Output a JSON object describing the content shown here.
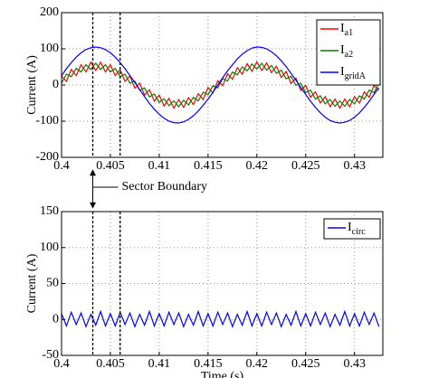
{
  "chart_data": [
    {
      "type": "line",
      "y_label": "Current (A)",
      "x": [
        0.4,
        0.4005,
        0.401,
        0.4015,
        0.402,
        0.4025,
        0.403,
        0.4035,
        0.404,
        0.4045,
        0.405,
        0.4055,
        0.406,
        0.4065,
        0.407,
        0.4075,
        0.408,
        0.4085,
        0.409,
        0.4095,
        0.41,
        0.4105,
        0.411,
        0.4115,
        0.412,
        0.4125,
        0.413,
        0.4135,
        0.414,
        0.4145,
        0.415,
        0.4155,
        0.416,
        0.4165,
        0.417,
        0.4175,
        0.418,
        0.4185,
        0.419,
        0.4195,
        0.42,
        0.4205,
        0.421,
        0.4215,
        0.422,
        0.4225,
        0.423,
        0.4235,
        0.424,
        0.4245,
        0.425,
        0.4255,
        0.426,
        0.4265,
        0.427,
        0.4275,
        0.428,
        0.4285,
        0.429,
        0.4295,
        0.43,
        0.4305,
        0.431,
        0.4315,
        0.432,
        0.4325
      ],
      "series": [
        {
          "name": "Ia1",
          "color": "#ff0000",
          "values": [
            25,
            10,
            43,
            26,
            56,
            36,
            63,
            40,
            63,
            36,
            56,
            26,
            43,
            10,
            25,
            -9,
            5,
            -28,
            -13,
            -45,
            -28,
            -58,
            -37,
            -64,
            -40,
            -62,
            -35,
            -54,
            -24,
            -40,
            -7,
            -22,
            12,
            -2,
            31,
            16,
            48,
            30,
            59,
            38,
            64,
            40,
            61,
            34,
            52,
            21,
            37,
            4,
            19,
            -15,
            -1,
            -34,
            -19,
            -50,
            -32,
            -60,
            -39,
            -64,
            -39,
            -60,
            -32,
            -50,
            -19,
            -34,
            -1,
            -15
          ]
        },
        {
          "name": "Ia2",
          "color": "#008000",
          "values": [
            5,
            30,
            23,
            46,
            36,
            56,
            43,
            60,
            43,
            56,
            36,
            46,
            23,
            30,
            5,
            11,
            -15,
            -8,
            -33,
            -25,
            -48,
            -38,
            -57,
            -44,
            -60,
            -42,
            -55,
            -34,
            -44,
            -20,
            -27,
            -2,
            -8,
            18,
            11,
            36,
            28,
            50,
            39,
            58,
            44,
            60,
            41,
            54,
            32,
            41,
            17,
            24,
            -1,
            5,
            -21,
            -14,
            -39,
            -30,
            -52,
            -40,
            -59,
            -44,
            -59,
            -40,
            -52,
            -30,
            -39,
            -14,
            -21,
            5
          ]
        },
        {
          "name": "IgridA",
          "color": "#0000ff",
          "values": [
            26,
            45,
            62,
            77,
            89,
            98,
            103,
            105,
            103,
            98,
            89,
            77,
            62,
            45,
            26,
            7,
            -13,
            -32,
            -51,
            -67,
            -81,
            -92,
            -100,
            -104,
            -105,
            -102,
            -95,
            -85,
            -72,
            -56,
            -39,
            -20,
            0,
            20,
            39,
            56,
            72,
            85,
            95,
            102,
            105,
            104,
            100,
            92,
            81,
            67,
            51,
            32,
            13,
            -7,
            -26,
            -45,
            -62,
            -77,
            -89,
            -98,
            -103,
            -105,
            -103,
            -98,
            -89,
            -77,
            -62,
            -45,
            -26,
            -7
          ]
        }
      ],
      "xlim": [
        0.4,
        0.4329
      ],
      "xticks": [
        0.4,
        0.405,
        0.41,
        0.415,
        0.42,
        0.425,
        0.43
      ],
      "ylim": [
        -200,
        200
      ],
      "yticks": [
        200,
        100,
        0,
        -100,
        -200
      ],
      "grid": true,
      "legend": "upper right",
      "sector_boundaries": [
        0.4032,
        0.406
      ],
      "annotation": "Sector Boundary"
    },
    {
      "type": "line",
      "y_label": "Current (A)",
      "x_label": "Time (s)",
      "x": [
        0.4,
        0.4005,
        0.401,
        0.4015,
        0.402,
        0.4025,
        0.403,
        0.4035,
        0.404,
        0.4045,
        0.405,
        0.4055,
        0.406,
        0.4065,
        0.407,
        0.4075,
        0.408,
        0.4085,
        0.409,
        0.4095,
        0.41,
        0.4105,
        0.411,
        0.4115,
        0.412,
        0.4125,
        0.413,
        0.4135,
        0.414,
        0.4145,
        0.415,
        0.4155,
        0.416,
        0.4165,
        0.417,
        0.4175,
        0.418,
        0.4185,
        0.419,
        0.4195,
        0.42,
        0.4205,
        0.421,
        0.4215,
        0.422,
        0.4225,
        0.423,
        0.4235,
        0.424,
        0.4245,
        0.425,
        0.4255,
        0.426,
        0.4265,
        0.427,
        0.4275,
        0.428,
        0.4285,
        0.429,
        0.4295,
        0.43,
        0.4305,
        0.431,
        0.4315,
        0.432,
        0.4325
      ],
      "series": [
        {
          "name": "Icirc",
          "color": "#0000ff",
          "values": [
            8,
            -9,
            10,
            -7,
            9,
            -10,
            7,
            -8,
            11,
            -9,
            8,
            -9,
            10,
            -7,
            9,
            -10,
            7,
            -8,
            11,
            -9,
            8,
            -9,
            10,
            -7,
            9,
            -10,
            7,
            -8,
            11,
            -9,
            8,
            -9,
            10,
            -7,
            9,
            -10,
            7,
            -8,
            11,
            -9,
            8,
            -9,
            10,
            -7,
            9,
            -10,
            7,
            -8,
            11,
            -9,
            8,
            -9,
            10,
            -7,
            9,
            -10,
            7,
            -8,
            11,
            -9,
            8,
            -9,
            10,
            -7,
            9,
            -10
          ]
        }
      ],
      "xlim": [
        0.4,
        0.4329
      ],
      "xticks": [
        0.4,
        0.405,
        0.41,
        0.415,
        0.42,
        0.425,
        0.43
      ],
      "ylim": [
        -50,
        150
      ],
      "yticks": [
        150,
        100,
        50,
        0,
        -50
      ],
      "grid": true,
      "legend": "upper right",
      "sector_boundaries": [
        0.4032,
        0.406
      ]
    }
  ]
}
